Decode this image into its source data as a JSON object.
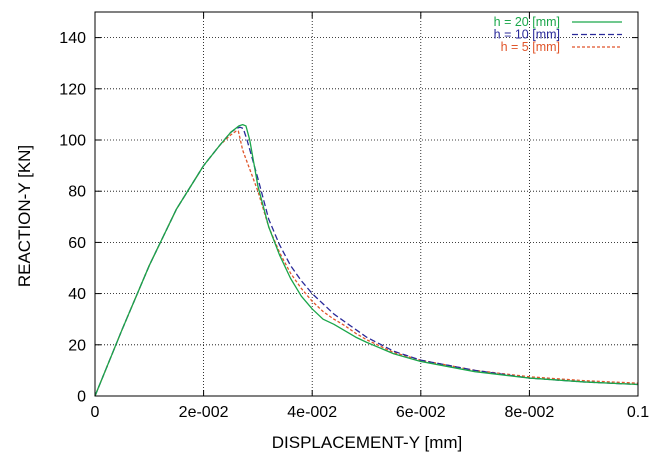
{
  "chart_data": {
    "type": "line",
    "title": "",
    "xlabel": "DISPLACEMENT-Y [mm]",
    "ylabel": "REACTION-Y [KN]",
    "xlim": [
      0,
      0.1
    ],
    "ylim": [
      0,
      150
    ],
    "x_ticks": [
      0,
      0.02,
      0.04,
      0.06,
      0.08,
      0.1
    ],
    "x_tick_labels": [
      "0",
      "2e-002",
      "4e-002",
      "6e-002",
      "8e-002",
      "0.1"
    ],
    "y_ticks": [
      0,
      20,
      40,
      60,
      80,
      100,
      120,
      140
    ],
    "y_tick_labels": [
      "0",
      "20",
      "40",
      "60",
      "80",
      "100",
      "120",
      "140"
    ],
    "grid": true,
    "legend_position": "top-right",
    "series": [
      {
        "name": "h = 20 [mm]",
        "color": "#1aa64a",
        "dash": "solid",
        "x": [
          0,
          0.005,
          0.01,
          0.015,
          0.02,
          0.023,
          0.025,
          0.0265,
          0.0272,
          0.0278,
          0.0285,
          0.03,
          0.032,
          0.034,
          0.036,
          0.038,
          0.04,
          0.042,
          0.044,
          0.046,
          0.048,
          0.05,
          0.055,
          0.06,
          0.07,
          0.08,
          0.09,
          0.1
        ],
        "y": [
          0,
          26,
          51,
          73,
          90,
          98,
          103,
          105.5,
          106,
          105.5,
          100,
          82,
          66,
          55,
          46,
          39,
          34,
          30,
          28,
          25.5,
          23,
          21,
          16.5,
          13.5,
          9.5,
          7,
          5.5,
          4.5
        ]
      },
      {
        "name": "h = 10 [mm]",
        "color": "#2a2a9a",
        "dash": "dashed",
        "x": [
          0,
          0.005,
          0.01,
          0.015,
          0.02,
          0.023,
          0.025,
          0.026,
          0.0267,
          0.0273,
          0.028,
          0.03,
          0.032,
          0.034,
          0.036,
          0.038,
          0.04,
          0.042,
          0.044,
          0.046,
          0.048,
          0.05,
          0.055,
          0.06,
          0.07,
          0.08,
          0.09,
          0.1
        ],
        "y": [
          0,
          26,
          51,
          73,
          90,
          98,
          103,
          104.5,
          105,
          104.5,
          100,
          85,
          69,
          59,
          51,
          45,
          40,
          36,
          32,
          29,
          26,
          23,
          17.5,
          14,
          10,
          7,
          5.5,
          4.5
        ]
      },
      {
        "name": "h =  5 [mm]",
        "color": "#e0552a",
        "dash": "dotted",
        "x": [
          0,
          0.005,
          0.01,
          0.015,
          0.02,
          0.023,
          0.025,
          0.026,
          0.0264,
          0.0272,
          0.03,
          0.032,
          0.034,
          0.036,
          0.038,
          0.04,
          0.042,
          0.044,
          0.046,
          0.048,
          0.05,
          0.055,
          0.06,
          0.07,
          0.08,
          0.09,
          0.1
        ],
        "y": [
          0,
          26,
          51,
          73,
          90,
          98,
          102,
          103.5,
          103.5,
          96,
          80,
          66,
          56,
          48,
          42,
          37,
          33,
          30,
          27.5,
          24.5,
          22,
          17,
          14,
          10,
          7.5,
          6,
          5
        ]
      }
    ]
  }
}
